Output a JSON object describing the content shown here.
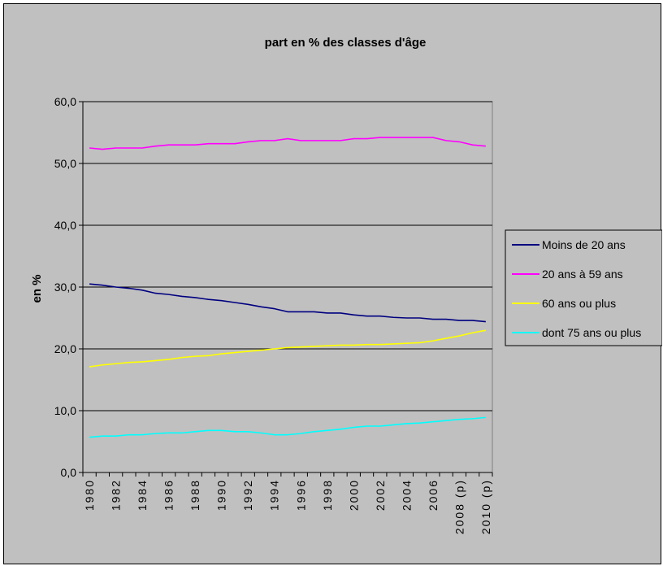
{
  "chart_data": {
    "type": "line",
    "title": "part en % des classes d'âge",
    "xlabel": "",
    "ylabel": "en %",
    "ylim": [
      0,
      60
    ],
    "yticks": [
      "0,0",
      "10,0",
      "20,0",
      "30,0",
      "40,0",
      "50,0",
      "60,0"
    ],
    "grid": true,
    "legend_position": "right",
    "x": [
      1980,
      1981,
      1982,
      1983,
      1984,
      1985,
      1986,
      1987,
      1988,
      1989,
      1990,
      1991,
      1992,
      1993,
      1994,
      1995,
      1996,
      1997,
      1998,
      1999,
      2000,
      2001,
      2002,
      2003,
      2004,
      2005,
      2006,
      2007,
      2008,
      2009,
      2010
    ],
    "xtick_labels": [
      "1980",
      "1982",
      "1984",
      "1986",
      "1988",
      "1990",
      "1992",
      "1994",
      "1996",
      "1998",
      "2000",
      "2002",
      "2004",
      "2006",
      "2008 (p)",
      "2010 (p)"
    ],
    "series": [
      {
        "name": "Moins de 20 ans",
        "color": "#000080",
        "values": [
          30.5,
          30.3,
          30.0,
          29.8,
          29.5,
          29.0,
          28.8,
          28.5,
          28.3,
          28.0,
          27.8,
          27.5,
          27.2,
          26.8,
          26.5,
          26.0,
          26.0,
          26.0,
          25.8,
          25.8,
          25.5,
          25.3,
          25.3,
          25.1,
          25.0,
          25.0,
          24.8,
          24.8,
          24.6,
          24.6,
          24.4
        ]
      },
      {
        "name": "20 ans à 59 ans",
        "color": "#ff00ff",
        "values": [
          52.5,
          52.3,
          52.5,
          52.5,
          52.5,
          52.8,
          53.0,
          53.0,
          53.0,
          53.2,
          53.2,
          53.2,
          53.5,
          53.7,
          53.7,
          54.0,
          53.7,
          53.7,
          53.7,
          53.7,
          54.0,
          54.0,
          54.2,
          54.2,
          54.2,
          54.2,
          54.2,
          53.7,
          53.5,
          53.0,
          52.8
        ]
      },
      {
        "name": "60 ans ou plus",
        "color": "#ffff00",
        "values": [
          17.1,
          17.4,
          17.6,
          17.8,
          17.9,
          18.1,
          18.3,
          18.6,
          18.8,
          18.9,
          19.2,
          19.4,
          19.6,
          19.8,
          20.0,
          20.2,
          20.3,
          20.4,
          20.5,
          20.6,
          20.6,
          20.7,
          20.7,
          20.8,
          20.9,
          21.0,
          21.3,
          21.7,
          22.1,
          22.6,
          23.0
        ]
      },
      {
        "name": "dont 75 ans ou plus",
        "color": "#00ffff",
        "values": [
          5.7,
          5.9,
          5.9,
          6.1,
          6.1,
          6.3,
          6.4,
          6.4,
          6.6,
          6.8,
          6.8,
          6.6,
          6.6,
          6.4,
          6.1,
          6.1,
          6.3,
          6.6,
          6.8,
          7.0,
          7.3,
          7.5,
          7.5,
          7.7,
          7.9,
          8.0,
          8.2,
          8.4,
          8.6,
          8.7,
          8.9
        ]
      }
    ]
  }
}
